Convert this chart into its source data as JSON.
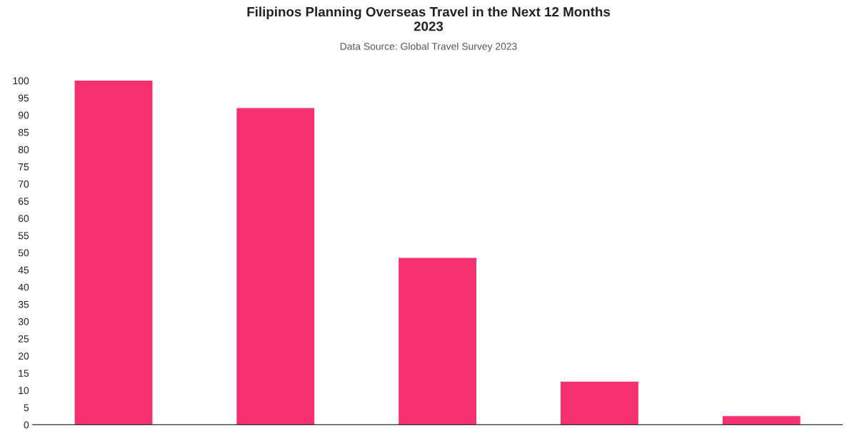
{
  "chart_data": {
    "type": "bar",
    "title": "Filipinos Planning Overseas Travel in the Next 12 Months\n2023",
    "subtitle": "Data Source: Global Travel Survey 2023",
    "categories": [
      null,
      null,
      null,
      null,
      null
    ],
    "values": [
      100,
      92,
      48.5,
      12.5,
      2.5
    ],
    "color": "#f5306f",
    "ylim": [
      0,
      100
    ],
    "yticks": [
      0,
      5,
      10,
      15,
      20,
      25,
      30,
      35,
      40,
      45,
      50,
      55,
      60,
      65,
      70,
      75,
      80,
      85,
      90,
      95,
      100
    ],
    "grid": false
  }
}
